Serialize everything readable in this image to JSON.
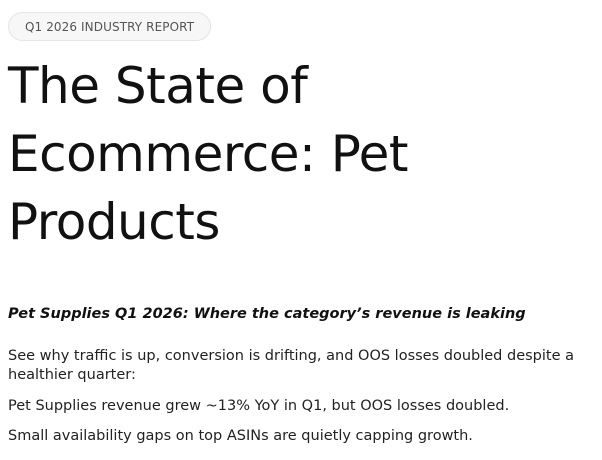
{
  "report_tag": "Q1 2026 INDUSTRY REPORT",
  "title": "The State of Ecommerce: Pet Products",
  "subtitle": "Pet Supplies Q1 2026: Where the category’s revenue is leaking",
  "paragraphs": [
    "See why traffic is up, conversion is drifting, and OOS losses doubled despite a healthier quarter:",
    "Pet Supplies revenue grew ~13% YoY in Q1, but OOS losses doubled.",
    "Small availability gaps on top ASINs are quietly capping growth."
  ],
  "colors": {
    "text": "#111111",
    "tag_background": "#f7f7f7",
    "tag_border": "#e5e5e5",
    "tag_text": "#555555"
  }
}
